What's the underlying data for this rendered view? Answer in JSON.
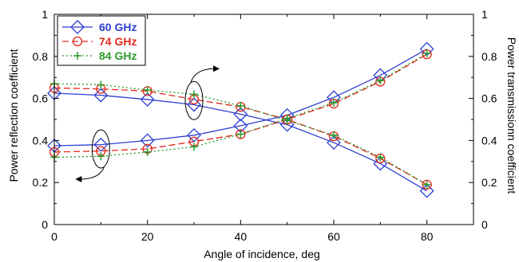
{
  "chart_data": {
    "type": "line",
    "xlabel": "Angle of incidence, deg",
    "ylabel_left": "Power reflection coefficient",
    "ylabel_right": "Power transmissionn coefficient",
    "xlim": [
      0,
      90
    ],
    "ylim": [
      0,
      1
    ],
    "x_ticks": [
      0,
      20,
      40,
      60,
      80
    ],
    "y_ticks": [
      0,
      0.2,
      0.4,
      0.6,
      0.8,
      1
    ],
    "x": [
      0,
      10,
      20,
      30,
      40,
      50,
      60,
      70,
      80
    ],
    "series": [
      {
        "name": "60 GHz",
        "color": "#2d3fd0",
        "line_style": "solid",
        "marker": "diamond",
        "reflection": [
          0.375,
          0.38,
          0.4,
          0.425,
          0.47,
          0.52,
          0.605,
          0.71,
          0.835
        ],
        "transmission": [
          0.625,
          0.615,
          0.595,
          0.57,
          0.525,
          0.475,
          0.39,
          0.29,
          0.16
        ]
      },
      {
        "name": "74 GHz",
        "color": "#e02a1e",
        "line_style": "dashed",
        "marker": "circle",
        "reflection": [
          0.345,
          0.35,
          0.36,
          0.395,
          0.43,
          0.5,
          0.575,
          0.68,
          0.81
        ],
        "transmission": [
          0.65,
          0.645,
          0.635,
          0.595,
          0.56,
          0.5,
          0.42,
          0.315,
          0.19
        ]
      },
      {
        "name": "84 GHz",
        "color": "#2a9c2a",
        "line_style": "dotted",
        "marker": "plus",
        "reflection": [
          0.32,
          0.325,
          0.345,
          0.37,
          0.43,
          0.505,
          0.58,
          0.685,
          0.815
        ],
        "transmission": [
          0.67,
          0.665,
          0.64,
          0.62,
          0.565,
          0.495,
          0.425,
          0.32,
          0.19
        ]
      }
    ],
    "legend": {
      "placement": "top-left"
    },
    "annotations": [
      {
        "label": "right-axis-indicator",
        "x": 30,
        "y": 0.59,
        "arrow": "right"
      },
      {
        "label": "left-axis-indicator",
        "x": 10,
        "y": 0.36,
        "arrow": "left"
      }
    ],
    "grid": false
  }
}
